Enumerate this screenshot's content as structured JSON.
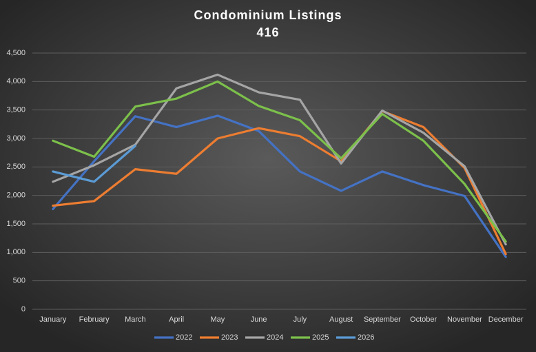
{
  "chart_data": {
    "type": "line",
    "title": "Condominium Listings",
    "subtitle": "416",
    "categories": [
      "January",
      "February",
      "March",
      "April",
      "May",
      "June",
      "July",
      "August",
      "September",
      "October",
      "November",
      "December"
    ],
    "series": [
      {
        "name": "2022",
        "color": "#4472c4",
        "values": [
          1760,
          2600,
          3390,
          3200,
          3400,
          3130,
          2420,
          2080,
          2420,
          2180,
          1990,
          920
        ]
      },
      {
        "name": "2023",
        "color": "#ed7d31",
        "values": [
          1820,
          1900,
          2460,
          2380,
          3000,
          3180,
          3040,
          2600,
          3480,
          3200,
          2480,
          970
        ]
      },
      {
        "name": "2024",
        "color": "#a5a5a5",
        "values": [
          2240,
          2530,
          2890,
          3880,
          4120,
          3810,
          3680,
          2560,
          3490,
          3100,
          2510,
          1140
        ]
      },
      {
        "name": "2025",
        "color": "#7cc04b",
        "values": [
          2960,
          2680,
          3560,
          3700,
          4000,
          3570,
          3320,
          2650,
          3430,
          2960,
          2200,
          1190
        ]
      },
      {
        "name": "2026",
        "color": "#5b9bd5",
        "values": [
          2420,
          2240,
          2870,
          null,
          null,
          null,
          null,
          null,
          null,
          null,
          null,
          null
        ]
      }
    ],
    "ylim": [
      0,
      4500
    ],
    "yticks": [
      0,
      500,
      {
        "value": 1000,
        "label": "1,000"
      },
      {
        "value": 1500,
        "label": "1,500"
      },
      {
        "value": 2000,
        "label": "2,000"
      },
      {
        "value": 2500,
        "label": "2,500"
      },
      {
        "value": 3000,
        "label": "3,000"
      },
      {
        "value": 3500,
        "label": "3,500"
      },
      {
        "value": 4000,
        "label": "4,000"
      },
      {
        "value": 4500,
        "label": "4,500"
      }
    ],
    "grid": true,
    "legend": "bottom"
  }
}
